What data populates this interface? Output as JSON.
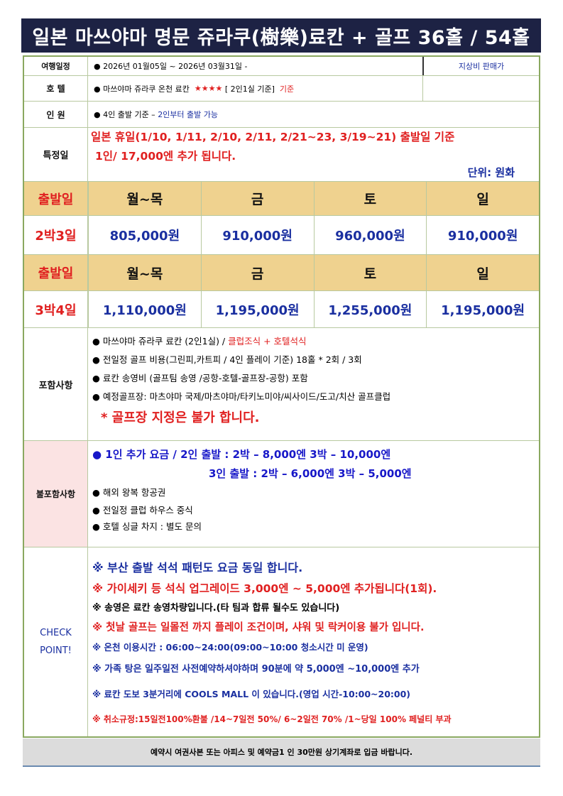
{
  "title": "일본 마쓰야마 명문 쥬라쿠(樹樂)료칸 + 골프 36홀 / 54홀",
  "info": {
    "schedule": {
      "label": "여행일정",
      "value": "● 2026년 01월05일  ~  2026년 03월31일 -",
      "side": "지상비 판매가"
    },
    "hotel": {
      "label": "호  텔",
      "value": "● 마쓰야마 쥬라쿠 온천 료칸",
      "stars": "★★★★",
      "room": "[ 2인1실 기준]",
      "suffix": "기준"
    },
    "people": {
      "label": "인  원",
      "value": "● 4인 출발 기준 –",
      "note": "2인부터 출발 가능"
    },
    "special": {
      "label": "특정일",
      "line1": "일본 휴일(1/10, 1/11, 2/10, 2/11, 2/21~23, 3/19~21) 출발일 기준",
      "line2": "1인/ 17,000엔 추가 됩니다.",
      "unit": "단위: 원화"
    }
  },
  "pricing": {
    "header_label": "출발일",
    "days": [
      "월~목",
      "금",
      "토",
      "일"
    ],
    "rows": [
      {
        "label": "2박3일",
        "prices": [
          "805,000원",
          "910,000원",
          "960,000원",
          "910,000원"
        ]
      },
      {
        "label": "3박4일",
        "prices": [
          "1,110,000원",
          "1,195,000원",
          "1,255,000원",
          "1,195,000원"
        ]
      }
    ]
  },
  "included": {
    "label": "포함사항",
    "items": [
      "● 마쓰야마 쥬라쿠 료칸 (2인1실) /",
      "● 전일정 골프 비용(그린피,카트피 / 4인 플레이 기준) 18홀 * 2회 / 3회",
      "● 료칸 송영비 (골프팀 송영 /공항-호텔-골프장-공항) 포함",
      "● 예정골프장: 마츠야마 국제/마츠야마/타키노미야/씨사이드/도고/치산 골프클럽"
    ],
    "meal_note": "클럽조식 + 호텔석식",
    "warning": "* 골프장 지정은 불가 합니다."
  },
  "excluded": {
    "label": "불포함사항",
    "extra1": "● 1인 추가 요금 /   2인 출발 :  2박 – 8,000엔 3박 – 10,000엔",
    "extra2": "3인 출발 :  2박 – 6,000엔 3박 –   5,000엔",
    "items": [
      "● 해외 왕복 항공권",
      "● 전일정 클럽 하우스 중식",
      "● 호텔 싱글 차지 : 별도 문의"
    ]
  },
  "checkpoint": {
    "label1": "CHECK",
    "label2": "POINT!",
    "items": [
      "※ 부산 출발 석석 패턴도 요금 동일 합니다.",
      "※ 가이세키 등 석식 업그레이드 3,000엔 ~ 5,000엔 추가됩니다(1회).",
      "※ 송영은 료칸 송영차량입니다.(타 팀과 합류 될수도 있습니다)",
      "※ 첫날 골프는 일몰전 까지 플레이 조건이며, 샤워 및 락커이용 불가 입니다.",
      "※ 온천 이용시간 : 06:00~24:00(09:00~10:00 청소시간 미 운영)",
      "※ 가족 탕은 일주일전 사전예약하셔야하며 90분에 약 5,000엔 ~10,000엔 추가",
      "※ 료칸 도보 3분거리에 COOLS MALL 이 있습니다.(영업 시간-10:00~20:00)",
      "※ 취소규정:15일전100%환불 /14~7일전 50%/ 6~2일전 70% /1~당일 100% 페널티 부과"
    ]
  },
  "footer": "예약시 여권사본 또는 아피스 및  예약금1 인 30만원 상기계좌로 입금 바랍니다."
}
